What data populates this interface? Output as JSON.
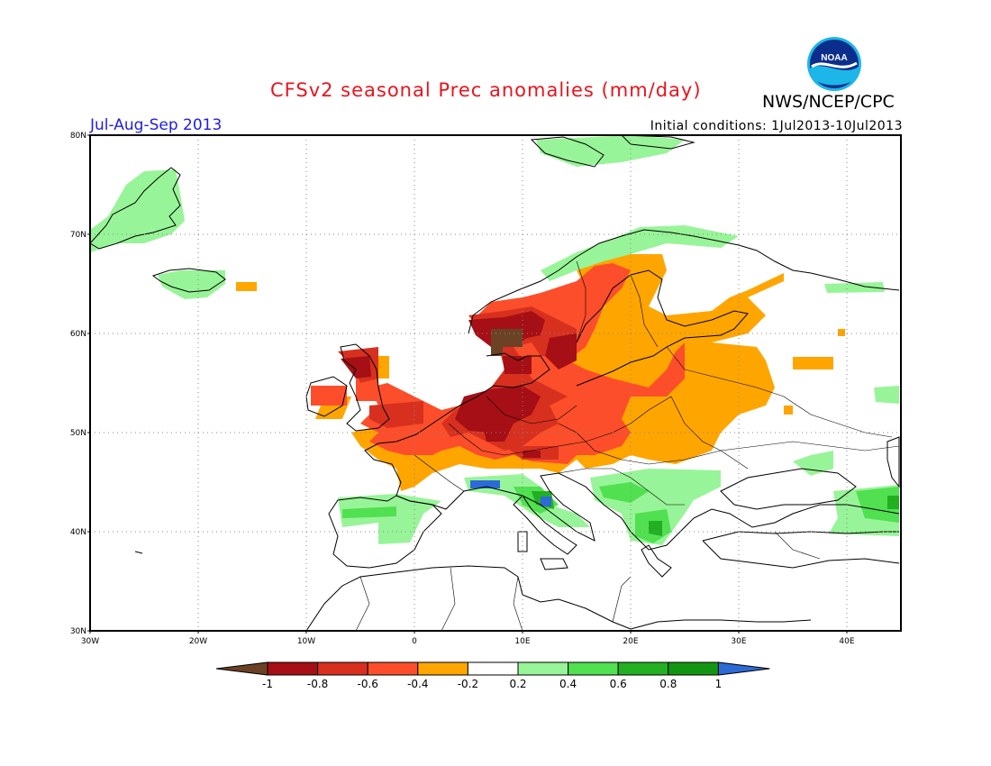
{
  "title": "CFSv2 seasonal Prec anomalies (mm/day)",
  "agency": "NWS/NCEP/CPC",
  "logo_text": "NOAA",
  "season": "Jul-Aug-Sep 2013",
  "initial_conditions": "Initial conditions: 1Jul2013-10Jul2013",
  "map": {
    "lon_range": [
      -30,
      45
    ],
    "lat_range": [
      30,
      80
    ],
    "lat_ticks": [
      {
        "value": 80,
        "label": "80N"
      },
      {
        "value": 70,
        "label": "70N"
      },
      {
        "value": 60,
        "label": "60N"
      },
      {
        "value": 50,
        "label": "50N"
      },
      {
        "value": 40,
        "label": "40N"
      },
      {
        "value": 30,
        "label": "30N"
      }
    ],
    "lon_ticks": [
      {
        "value": -30,
        "label": "30W"
      },
      {
        "value": -20,
        "label": "20W"
      },
      {
        "value": -10,
        "label": "10W"
      },
      {
        "value": 0,
        "label": "0"
      },
      {
        "value": 10,
        "label": "10E"
      },
      {
        "value": 20,
        "label": "20E"
      },
      {
        "value": 30,
        "label": "30E"
      },
      {
        "value": 40,
        "label": "40E"
      }
    ],
    "grid": "dotted"
  },
  "colorbar": {
    "labels": [
      "-1",
      "-0.8",
      "-0.6",
      "-0.4",
      "-0.2",
      "0.2",
      "0.4",
      "0.6",
      "0.8",
      "1"
    ],
    "colors": [
      "#6b4226",
      "#a50f15",
      "#d7301f",
      "#fc4e2a",
      "#ffa500",
      "#ffffff",
      "#98f498",
      "#50e050",
      "#22b022",
      "#129612",
      "#2d6ad6"
    ]
  }
}
